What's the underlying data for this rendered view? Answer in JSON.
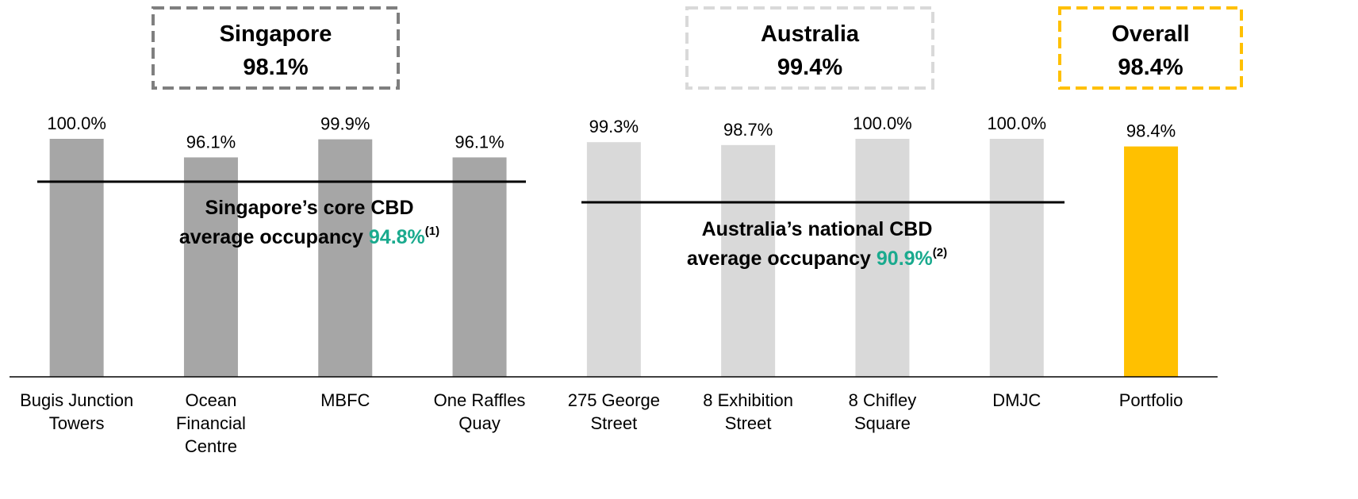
{
  "chart_data": {
    "type": "bar",
    "categories": [
      "Bugis Junction\nTowers",
      "Ocean\nFinancial\nCentre",
      "MBFC",
      "One Raffles\nQuay",
      "275 George\nStreet",
      "8 Exhibition\nStreet",
      "8 Chifley\nSquare",
      "DMJC",
      "Portfolio"
    ],
    "values": [
      100.0,
      96.1,
      99.9,
      96.1,
      99.3,
      98.7,
      100.0,
      100.0,
      98.4
    ],
    "value_labels": [
      "100.0%",
      "96.1%",
      "99.9%",
      "96.1%",
      "99.3%",
      "98.7%",
      "100.0%",
      "100.0%",
      "98.4%"
    ],
    "colors": [
      "#a6a6a6",
      "#a6a6a6",
      "#a6a6a6",
      "#a6a6a6",
      "#d9d9d9",
      "#d9d9d9",
      "#d9d9d9",
      "#d9d9d9",
      "#ffc000"
    ],
    "ylim": [
      50,
      100
    ],
    "groups": [
      {
        "name": "Singapore",
        "value_label": "98.1%",
        "color": "#7f7f7f"
      },
      {
        "name": "Australia",
        "value_label": "99.4%",
        "color": "#d9d9d9"
      },
      {
        "name": "Overall",
        "value_label": "98.4%",
        "color": "#ffc000"
      }
    ],
    "annotations": [
      {
        "line1": "Singapore’s core CBD",
        "line2": "average occupancy",
        "value_label": "94.8%",
        "note": "(1)"
      },
      {
        "line1": "Australia’s national CBD",
        "line2": "average occupancy",
        "value_label": "90.9%",
        "note": "(2)"
      }
    ]
  }
}
